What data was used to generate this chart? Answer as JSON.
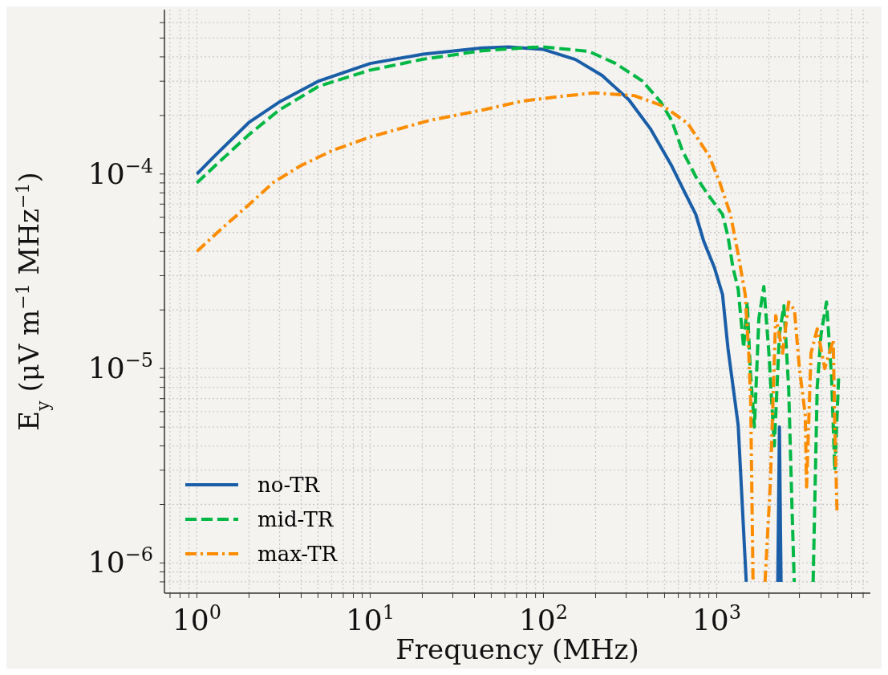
{
  "chart_data": {
    "type": "line",
    "xlabel": "Frequency (MHz)",
    "ylabel": "E$_{y}$ (μV m$^{−1}$ MHz$^{−1}$)",
    "log": "xy",
    "grid": true,
    "legend": "bottom left",
    "marker": "none",
    "xlim": [
      0.65,
      7700
    ],
    "ylim": [
      7e-07,
      0.0007
    ],
    "xticks": [
      {
        "value": 0.7,
        "label": null
      },
      {
        "value": 0.8,
        "label": null
      },
      {
        "value": 0.9,
        "label": null
      },
      {
        "value": 1,
        "label": "10$^{0}$"
      },
      {
        "value": 2,
        "label": null
      },
      {
        "value": 3,
        "label": null
      },
      {
        "value": 4,
        "label": null
      },
      {
        "value": 5,
        "label": null
      },
      {
        "value": 6,
        "label": null
      },
      {
        "value": 7,
        "label": null
      },
      {
        "value": 8,
        "label": null
      },
      {
        "value": 9,
        "label": null
      },
      {
        "value": 10,
        "label": "10$^{1}$"
      },
      {
        "value": 20,
        "label": null
      },
      {
        "value": 30,
        "label": null
      },
      {
        "value": 40,
        "label": null
      },
      {
        "value": 50,
        "label": null
      },
      {
        "value": 60,
        "label": null
      },
      {
        "value": 70,
        "label": null
      },
      {
        "value": 80,
        "label": null
      },
      {
        "value": 90,
        "label": null
      },
      {
        "value": 100,
        "label": "10$^{2}$"
      },
      {
        "value": 200,
        "label": null
      },
      {
        "value": 300,
        "label": null
      },
      {
        "value": 400,
        "label": null
      },
      {
        "value": 500,
        "label": null
      },
      {
        "value": 600,
        "label": null
      },
      {
        "value": 700,
        "label": null
      },
      {
        "value": 800,
        "label": null
      },
      {
        "value": 900,
        "label": null
      },
      {
        "value": 1000,
        "label": "10$^{3}$"
      },
      {
        "value": 2000,
        "label": null
      },
      {
        "value": 3000,
        "label": null
      },
      {
        "value": 4000,
        "label": null
      },
      {
        "value": 5000,
        "label": null
      },
      {
        "value": 6000,
        "label": null
      },
      {
        "value": 7000,
        "label": null
      }
    ],
    "yticks": [
      {
        "value": 8e-07,
        "label": null
      },
      {
        "value": 9e-07,
        "label": null
      },
      {
        "value": 1e-06,
        "label": "10$^{−6}$"
      },
      {
        "value": 2e-06,
        "label": null
      },
      {
        "value": 3e-06,
        "label": null
      },
      {
        "value": 4e-06,
        "label": null
      },
      {
        "value": 5e-06,
        "label": null
      },
      {
        "value": 6e-06,
        "label": null
      },
      {
        "value": 7e-06,
        "label": null
      },
      {
        "value": 8e-06,
        "label": null
      },
      {
        "value": 9e-06,
        "label": null
      },
      {
        "value": 1e-05,
        "label": "10$^{−5}$"
      },
      {
        "value": 2e-05,
        "label": null
      },
      {
        "value": 3e-05,
        "label": null
      },
      {
        "value": 4e-05,
        "label": null
      },
      {
        "value": 5e-05,
        "label": null
      },
      {
        "value": 6e-05,
        "label": null
      },
      {
        "value": 7e-05,
        "label": null
      },
      {
        "value": 8e-05,
        "label": null
      },
      {
        "value": 9e-05,
        "label": null
      },
      {
        "value": 0.0001,
        "label": "10$^{−4}$"
      },
      {
        "value": 0.0002,
        "label": null
      },
      {
        "value": 0.0003,
        "label": null
      },
      {
        "value": 0.0004,
        "label": null
      },
      {
        "value": 0.0005,
        "label": null
      },
      {
        "value": 0.0006,
        "label": null
      }
    ],
    "series": [
      {
        "name": "no-TR",
        "color": "#1a5ea8",
        "line_style": "solid",
        "x": [
          1,
          1.27,
          2.01,
          2.98,
          5.07,
          10,
          20.2,
          44.2,
          62.8,
          100,
          153,
          218,
          311,
          414,
          550,
          656,
          757,
          842,
          970,
          1080,
          1160,
          1330,
          1480,
          1550,
          2250,
          2300,
          2350
        ],
        "values": [
          0.0001,
          0.000124,
          0.000185,
          0.000234,
          0.000301,
          0.00037,
          0.000413,
          0.000445,
          0.00045,
          0.000437,
          0.000388,
          0.000321,
          0.000241,
          0.000171,
          0.00011,
          8e-05,
          6.2e-05,
          4.5e-05,
          3.3e-05,
          2.4e-05,
          1.28e-05,
          5.1e-06,
          8e-07,
          null,
          8e-07,
          5e-06,
          8e-07
        ]
      },
      {
        "name": "mid-TR",
        "color": "#00b843",
        "line_style": "dashed",
        "x": [
          1,
          1.27,
          2.01,
          2.98,
          5.07,
          10,
          20.2,
          44.2,
          83.7,
          100,
          183,
          261,
          372,
          476,
          550,
          633,
          757,
          903,
          1080,
          1160,
          1240,
          1330,
          1430,
          1500,
          1560,
          1650,
          1750,
          1870,
          2000,
          2150,
          2300,
          2440,
          2600,
          2720,
          2800,
          2900,
          3600,
          3800,
          4000,
          4300,
          4600,
          4800,
          5060
        ],
        "values": [
          9e-05,
          0.00011,
          0.00016,
          0.000213,
          0.000283,
          0.000342,
          0.000389,
          0.00043,
          0.000448,
          0.00045,
          0.000427,
          0.00037,
          0.000301,
          0.000234,
          0.000188,
          0.000132,
          9.7e-05,
          7.7e-05,
          6.2e-05,
          4.8e-05,
          3.3e-05,
          2.56e-05,
          1.28e-05,
          2.2e-05,
          1e-05,
          5e-06,
          1.8e-05,
          2.64e-05,
          1.2e-05,
          4e-06,
          1.5e-05,
          2.1e-05,
          8e-06,
          1.9e-06,
          8e-07,
          null,
          8e-07,
          8e-06,
          1.5e-05,
          2.2e-05,
          9e-06,
          3e-06,
          9.3e-06
        ]
      },
      {
        "name": "max-TR",
        "color": "#fd8d00",
        "line_style": "dashdot",
        "x": [
          1,
          1.41,
          1.94,
          2.77,
          3.95,
          6.05,
          10,
          21.7,
          44.2,
          75.3,
          128,
          196,
          334,
          494,
          681,
          903,
          1040,
          1200,
          1330,
          1460,
          1530,
          1570,
          1620,
          1700,
          1900,
          2040,
          2190,
          2400,
          2600,
          2810,
          3000,
          3240,
          3300,
          3500,
          3800,
          4200,
          4700,
          4800,
          4950
        ],
        "values": [
          4e-05,
          5.3e-05,
          6.8e-05,
          9.06e-05,
          0.00011,
          0.000132,
          0.000155,
          0.000188,
          0.000213,
          0.000237,
          0.000251,
          0.000261,
          0.000253,
          0.000223,
          0.000182,
          0.000124,
          9.06e-05,
          6.2e-05,
          3.86e-05,
          2.4e-05,
          1.2e-05,
          6.8e-06,
          8e-07,
          null,
          8e-07,
          2.6e-06,
          1.87e-05,
          1.2e-05,
          2.2e-05,
          2e-05,
          1e-05,
          5.8e-06,
          2.46e-06,
          1.2e-05,
          1.6e-05,
          1e-05,
          1.4e-05,
          5e-06,
          1.78e-06
        ]
      }
    ]
  }
}
